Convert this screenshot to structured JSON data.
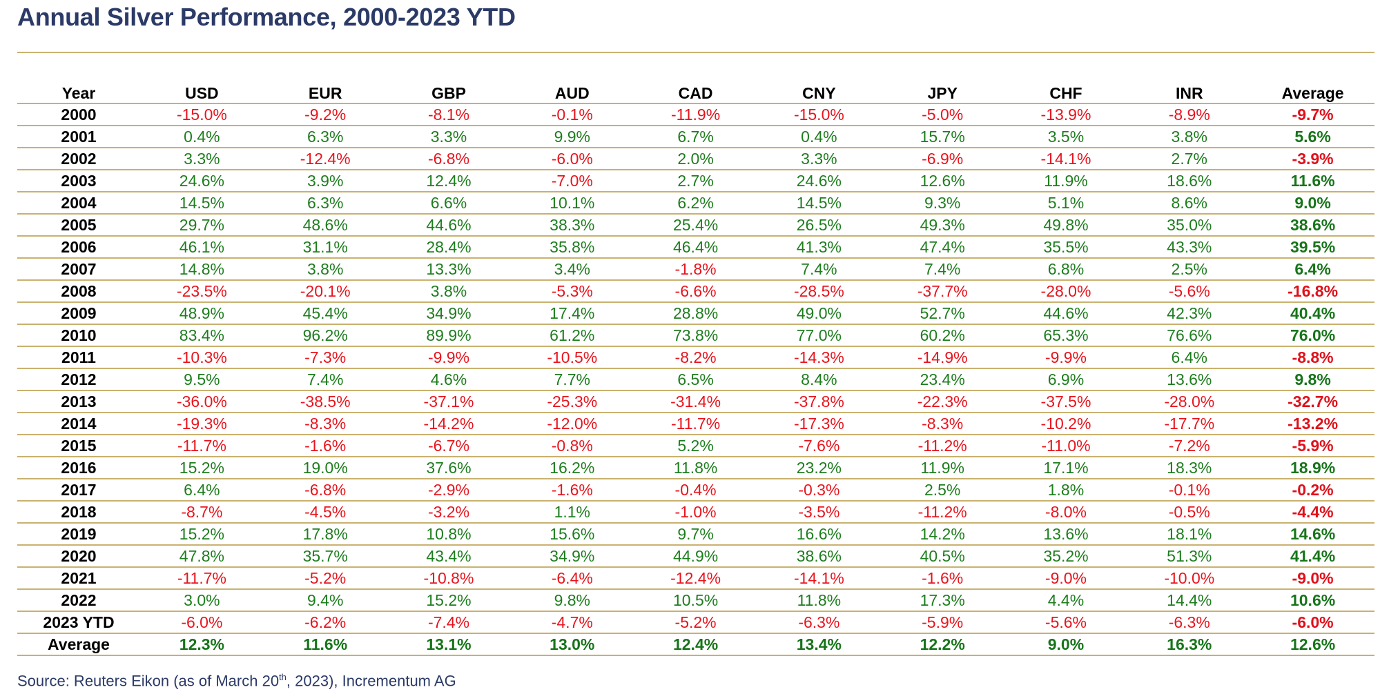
{
  "title": "Annual Silver Performance, 2000-2023 YTD",
  "source": {
    "before": "Source: Reuters Eikon (as of March 20",
    "sup": "th",
    "after": ", 2023), Incrementum AG"
  },
  "colors": {
    "positive": "#1e7d1e",
    "negative": "#e8141d",
    "rule": "#c9b16e",
    "title": "#2b3a67"
  },
  "chart_data": {
    "type": "table",
    "title": "Annual Silver Performance, 2000-2023 YTD",
    "columns": [
      "Year",
      "USD",
      "EUR",
      "GBP",
      "AUD",
      "CAD",
      "CNY",
      "JPY",
      "CHF",
      "INR",
      "Average"
    ],
    "rows": [
      [
        "2000",
        "-15.0%",
        "-9.2%",
        "-8.1%",
        "-0.1%",
        "-11.9%",
        "-15.0%",
        "-5.0%",
        "-13.9%",
        "-8.9%",
        "-9.7%"
      ],
      [
        "2001",
        "0.4%",
        "6.3%",
        "3.3%",
        "9.9%",
        "6.7%",
        "0.4%",
        "15.7%",
        "3.5%",
        "3.8%",
        "5.6%"
      ],
      [
        "2002",
        "3.3%",
        "-12.4%",
        "-6.8%",
        "-6.0%",
        "2.0%",
        "3.3%",
        "-6.9%",
        "-14.1%",
        "2.7%",
        "-3.9%"
      ],
      [
        "2003",
        "24.6%",
        "3.9%",
        "12.4%",
        "-7.0%",
        "2.7%",
        "24.6%",
        "12.6%",
        "11.9%",
        "18.6%",
        "11.6%"
      ],
      [
        "2004",
        "14.5%",
        "6.3%",
        "6.6%",
        "10.1%",
        "6.2%",
        "14.5%",
        "9.3%",
        "5.1%",
        "8.6%",
        "9.0%"
      ],
      [
        "2005",
        "29.7%",
        "48.6%",
        "44.6%",
        "38.3%",
        "25.4%",
        "26.5%",
        "49.3%",
        "49.8%",
        "35.0%",
        "38.6%"
      ],
      [
        "2006",
        "46.1%",
        "31.1%",
        "28.4%",
        "35.8%",
        "46.4%",
        "41.3%",
        "47.4%",
        "35.5%",
        "43.3%",
        "39.5%"
      ],
      [
        "2007",
        "14.8%",
        "3.8%",
        "13.3%",
        "3.4%",
        "-1.8%",
        "7.4%",
        "7.4%",
        "6.8%",
        "2.5%",
        "6.4%"
      ],
      [
        "2008",
        "-23.5%",
        "-20.1%",
        "3.8%",
        "-5.3%",
        "-6.6%",
        "-28.5%",
        "-37.7%",
        "-28.0%",
        "-5.6%",
        "-16.8%"
      ],
      [
        "2009",
        "48.9%",
        "45.4%",
        "34.9%",
        "17.4%",
        "28.8%",
        "49.0%",
        "52.7%",
        "44.6%",
        "42.3%",
        "40.4%"
      ],
      [
        "2010",
        "83.4%",
        "96.2%",
        "89.9%",
        "61.2%",
        "73.8%",
        "77.0%",
        "60.2%",
        "65.3%",
        "76.6%",
        "76.0%"
      ],
      [
        "2011",
        "-10.3%",
        "-7.3%",
        "-9.9%",
        "-10.5%",
        "-8.2%",
        "-14.3%",
        "-14.9%",
        "-9.9%",
        "6.4%",
        "-8.8%"
      ],
      [
        "2012",
        "9.5%",
        "7.4%",
        "4.6%",
        "7.7%",
        "6.5%",
        "8.4%",
        "23.4%",
        "6.9%",
        "13.6%",
        "9.8%"
      ],
      [
        "2013",
        "-36.0%",
        "-38.5%",
        "-37.1%",
        "-25.3%",
        "-31.4%",
        "-37.8%",
        "-22.3%",
        "-37.5%",
        "-28.0%",
        "-32.7%"
      ],
      [
        "2014",
        "-19.3%",
        "-8.3%",
        "-14.2%",
        "-12.0%",
        "-11.7%",
        "-17.3%",
        "-8.3%",
        "-10.2%",
        "-17.7%",
        "-13.2%"
      ],
      [
        "2015",
        "-11.7%",
        "-1.6%",
        "-6.7%",
        "-0.8%",
        "5.2%",
        "-7.6%",
        "-11.2%",
        "-11.0%",
        "-7.2%",
        "-5.9%"
      ],
      [
        "2016",
        "15.2%",
        "19.0%",
        "37.6%",
        "16.2%",
        "11.8%",
        "23.2%",
        "11.9%",
        "17.1%",
        "18.3%",
        "18.9%"
      ],
      [
        "2017",
        "6.4%",
        "-6.8%",
        "-2.9%",
        "-1.6%",
        "-0.4%",
        "-0.3%",
        "2.5%",
        "1.8%",
        "-0.1%",
        "-0.2%"
      ],
      [
        "2018",
        "-8.7%",
        "-4.5%",
        "-3.2%",
        "1.1%",
        "-1.0%",
        "-3.5%",
        "-11.2%",
        "-8.0%",
        "-0.5%",
        "-4.4%"
      ],
      [
        "2019",
        "15.2%",
        "17.8%",
        "10.8%",
        "15.6%",
        "9.7%",
        "16.6%",
        "14.2%",
        "13.6%",
        "18.1%",
        "14.6%"
      ],
      [
        "2020",
        "47.8%",
        "35.7%",
        "43.4%",
        "34.9%",
        "44.9%",
        "38.6%",
        "40.5%",
        "35.2%",
        "51.3%",
        "41.4%"
      ],
      [
        "2021",
        "-11.7%",
        "-5.2%",
        "-10.8%",
        "-6.4%",
        "-12.4%",
        "-14.1%",
        "-1.6%",
        "-9.0%",
        "-10.0%",
        "-9.0%"
      ],
      [
        "2022",
        "3.0%",
        "9.4%",
        "15.2%",
        "9.8%",
        "10.5%",
        "11.8%",
        "17.3%",
        "4.4%",
        "14.4%",
        "10.6%"
      ],
      [
        "2023 YTD",
        "-6.0%",
        "-6.2%",
        "-7.4%",
        "-4.7%",
        "-5.2%",
        "-6.3%",
        "-5.9%",
        "-5.6%",
        "-6.3%",
        "-6.0%"
      ],
      [
        "Average",
        "12.3%",
        "11.6%",
        "13.1%",
        "13.0%",
        "12.4%",
        "13.4%",
        "12.2%",
        "9.0%",
        "16.3%",
        "12.6%"
      ]
    ]
  }
}
